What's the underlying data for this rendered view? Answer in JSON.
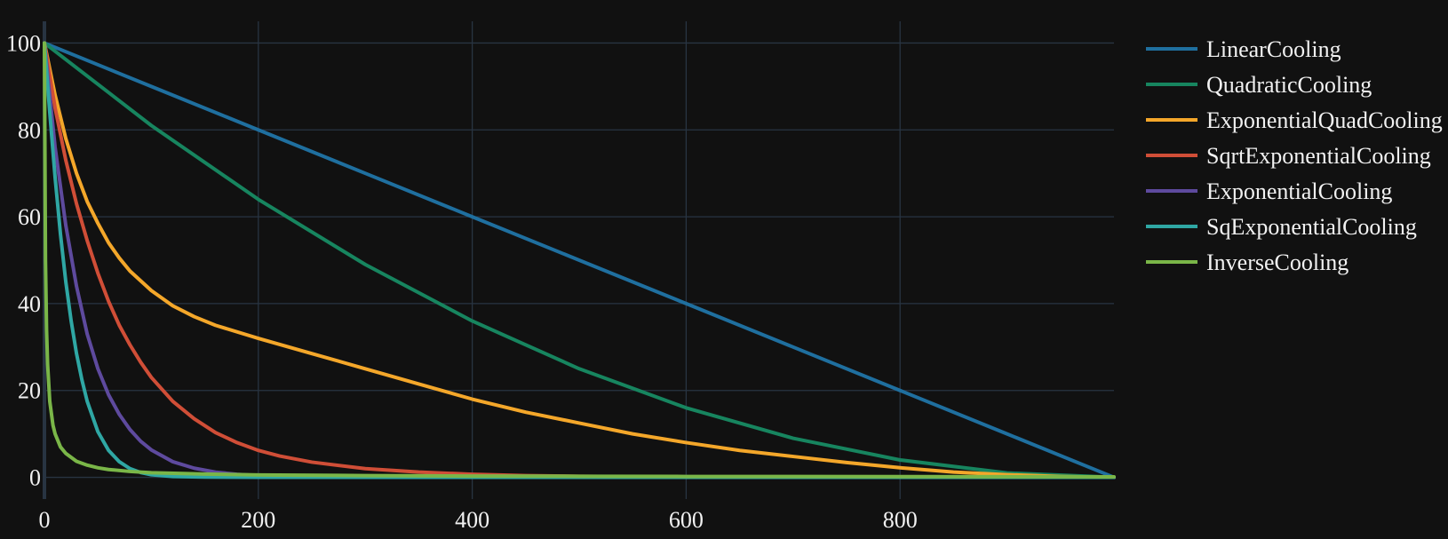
{
  "chart_data": {
    "type": "line",
    "title": "",
    "xlabel": "",
    "ylabel": "",
    "xlim": [
      0,
      1000
    ],
    "ylim": [
      -5,
      105
    ],
    "x_ticks": [
      0,
      200,
      400,
      600,
      800
    ],
    "y_ticks": [
      0,
      20,
      40,
      60,
      80,
      100
    ],
    "grid": true,
    "legend_position": "top-right (outside plot)",
    "background_color": "#111111",
    "grid_color": "#283442",
    "series": [
      {
        "name": "LinearCooling",
        "color": "#1f6f9f",
        "x": [
          0,
          100,
          200,
          300,
          400,
          500,
          600,
          700,
          800,
          900,
          1000
        ],
        "y": [
          100,
          90,
          80,
          70,
          60,
          50,
          40,
          30,
          20,
          10,
          0
        ]
      },
      {
        "name": "QuadraticCooling",
        "color": "#17855f",
        "x": [
          0,
          100,
          200,
          300,
          400,
          500,
          600,
          700,
          800,
          900,
          1000
        ],
        "y": [
          100,
          81,
          64,
          49,
          36,
          25,
          16,
          9,
          4,
          1,
          0
        ]
      },
      {
        "name": "ExponentialQuadCooling",
        "color": "#f4a72a",
        "x": [
          0,
          10,
          20,
          30,
          40,
          50,
          60,
          70,
          80,
          100,
          120,
          140,
          160,
          200,
          250,
          300,
          350,
          400,
          450,
          500,
          550,
          600,
          650,
          700,
          750,
          800,
          850,
          900,
          950,
          1000
        ],
        "y": [
          100,
          88,
          78,
          70,
          63.5,
          58.5,
          54,
          50.5,
          47.5,
          43,
          39.5,
          37,
          35,
          32,
          28.5,
          25,
          21.5,
          18,
          15,
          12.5,
          10,
          8,
          6.2,
          4.8,
          3.4,
          2.2,
          1.2,
          0.6,
          0.2,
          0
        ]
      },
      {
        "name": "SqrtExponentialCooling",
        "color": "#d04e37",
        "x": [
          0,
          10,
          20,
          30,
          40,
          50,
          60,
          70,
          80,
          90,
          100,
          120,
          140,
          160,
          180,
          200,
          220,
          250,
          300,
          350,
          400,
          450,
          500,
          600,
          700,
          800,
          900,
          1000
        ],
        "y": [
          100,
          85,
          73,
          63,
          54.5,
          47,
          40.5,
          35,
          30.5,
          26.5,
          23,
          17.5,
          13.5,
          10.3,
          8,
          6.2,
          4.9,
          3.5,
          2.0,
          1.2,
          0.7,
          0.4,
          0.25,
          0.1,
          0.05,
          0.02,
          0.01,
          0
        ]
      },
      {
        "name": "ExponentialCooling",
        "color": "#5e4a9e",
        "x": [
          0,
          10,
          20,
          30,
          40,
          50,
          60,
          70,
          80,
          90,
          100,
          120,
          140,
          160,
          180,
          200,
          250,
          300,
          400,
          500,
          600,
          700,
          800,
          900,
          1000
        ],
        "y": [
          100,
          76,
          58,
          44,
          33,
          25,
          19,
          14.5,
          11,
          8.3,
          6.3,
          3.6,
          2.1,
          1.2,
          0.7,
          0.4,
          0.1,
          0.03,
          0.01,
          0,
          0,
          0,
          0,
          0,
          0
        ]
      },
      {
        "name": "SqExponentialCooling",
        "color": "#2fa7a4",
        "x": [
          0,
          5,
          10,
          15,
          20,
          25,
          30,
          35,
          40,
          50,
          60,
          70,
          80,
          90,
          100,
          120,
          150,
          200,
          300,
          400,
          500,
          600,
          700,
          800,
          900,
          1000
        ],
        "y": [
          100,
          84,
          69,
          56,
          45,
          36,
          28.5,
          22.5,
          17.5,
          10.5,
          6.2,
          3.6,
          2.0,
          1.1,
          0.6,
          0.2,
          0.05,
          0,
          0,
          0,
          0,
          0,
          0,
          0,
          0,
          0
        ]
      },
      {
        "name": "InverseCooling",
        "color": "#7ab648",
        "x": [
          0,
          1,
          2,
          3,
          5,
          8,
          10,
          15,
          20,
          30,
          40,
          50,
          60,
          80,
          100,
          150,
          200,
          300,
          400,
          500,
          600,
          700,
          800,
          900,
          1000
        ],
        "y": [
          100,
          50,
          34,
          26,
          17.5,
          12,
          10,
          7,
          5.5,
          3.7,
          2.8,
          2.2,
          1.8,
          1.35,
          1.05,
          0.75,
          0.55,
          0.4,
          0.3,
          0.25,
          0.2,
          0.18,
          0.16,
          0.14,
          0.12
        ]
      }
    ]
  }
}
